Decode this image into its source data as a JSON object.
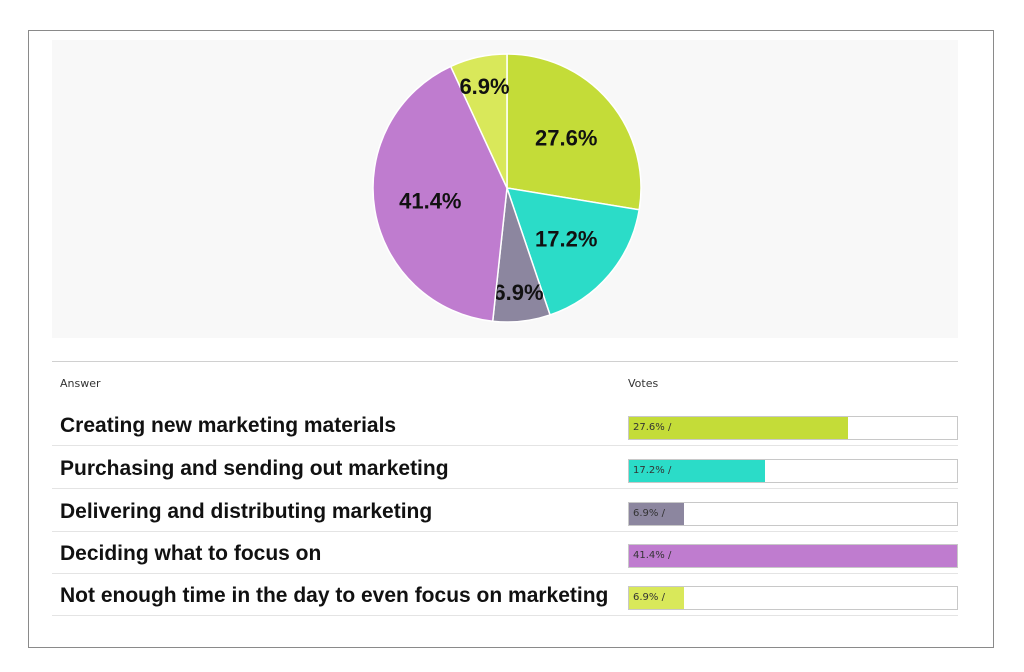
{
  "chart_data": {
    "type": "pie",
    "slices": [
      {
        "label": "Creating new marketing materials",
        "value": 27.6,
        "display": "27.6%",
        "color": "#c4dc38"
      },
      {
        "label": "Purchasing and sending out marketing",
        "value": 17.2,
        "display": "17.2%",
        "color": "#2bdcc8"
      },
      {
        "label": "Delivering and distributing marketing",
        "value": 6.9,
        "display": "6.9%",
        "color": "#8c869f"
      },
      {
        "label": "Deciding what to focus on",
        "value": 41.4,
        "display": "41.4%",
        "color": "#bf7ccf"
      },
      {
        "label": "Not enough time in the day to even focus on marketing",
        "value": 6.9,
        "display": "6.9%",
        "color": "#d9e85a"
      }
    ]
  },
  "table": {
    "answer_header": "Answer",
    "votes_header": "Votes",
    "rows": [
      {
        "answer": "Creating new marketing materials",
        "votes_text": "27.6% /",
        "percent": 27.6,
        "color": "#c4dc38"
      },
      {
        "answer": "Purchasing and sending out marketing",
        "votes_text": "17.2% /",
        "percent": 17.2,
        "color": "#2bdcc8"
      },
      {
        "answer": "Delivering and distributing marketing",
        "votes_text": "6.9% /",
        "percent": 6.9,
        "color": "#8c869f"
      },
      {
        "answer": "Deciding what to focus on",
        "votes_text": "41.4% /",
        "percent": 41.4,
        "color": "#bf7ccf"
      },
      {
        "answer": "Not enough time in the day to even focus on marketing",
        "votes_text": "6.9% /",
        "percent": 6.9,
        "color": "#d9e85a"
      }
    ]
  }
}
